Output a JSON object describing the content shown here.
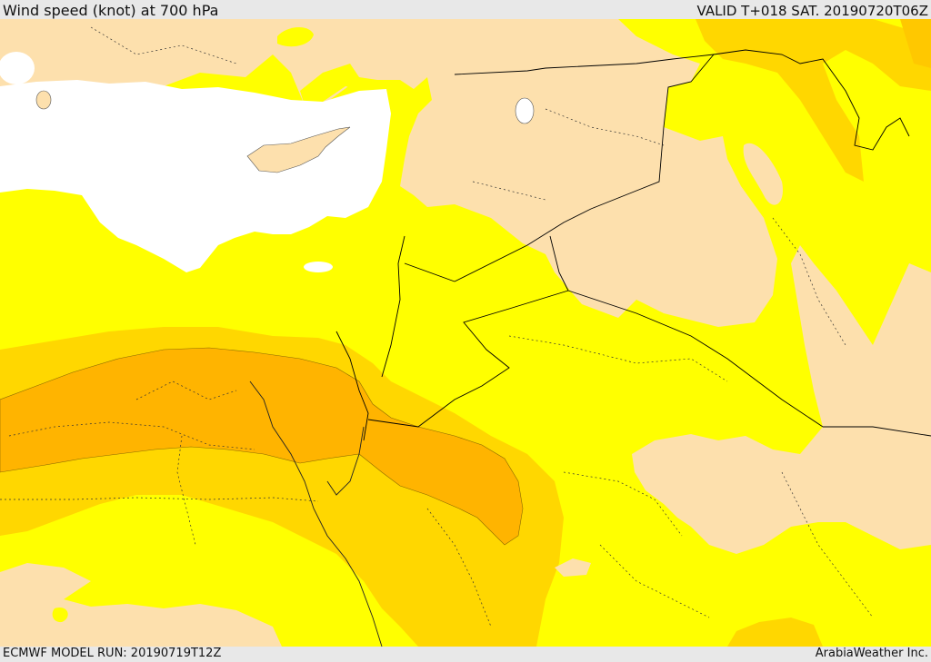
{
  "header": {
    "title": "Wind speed (knot) at 700 hPa",
    "valid_time": "VALID T+018 SAT. 20190720T06Z"
  },
  "footer": {
    "model_run": "ECMWF MODEL RUN: 20190719T12Z",
    "credit": "ArabiaWeather Inc."
  },
  "map": {
    "colors": {
      "low_wind": "#fde0ad",
      "moderate_wind": "#ffff00",
      "strong_wind": "#ffd700",
      "very_strong_wind": "#ffb400",
      "sea": "#ffffff",
      "border": "#000000"
    }
  }
}
